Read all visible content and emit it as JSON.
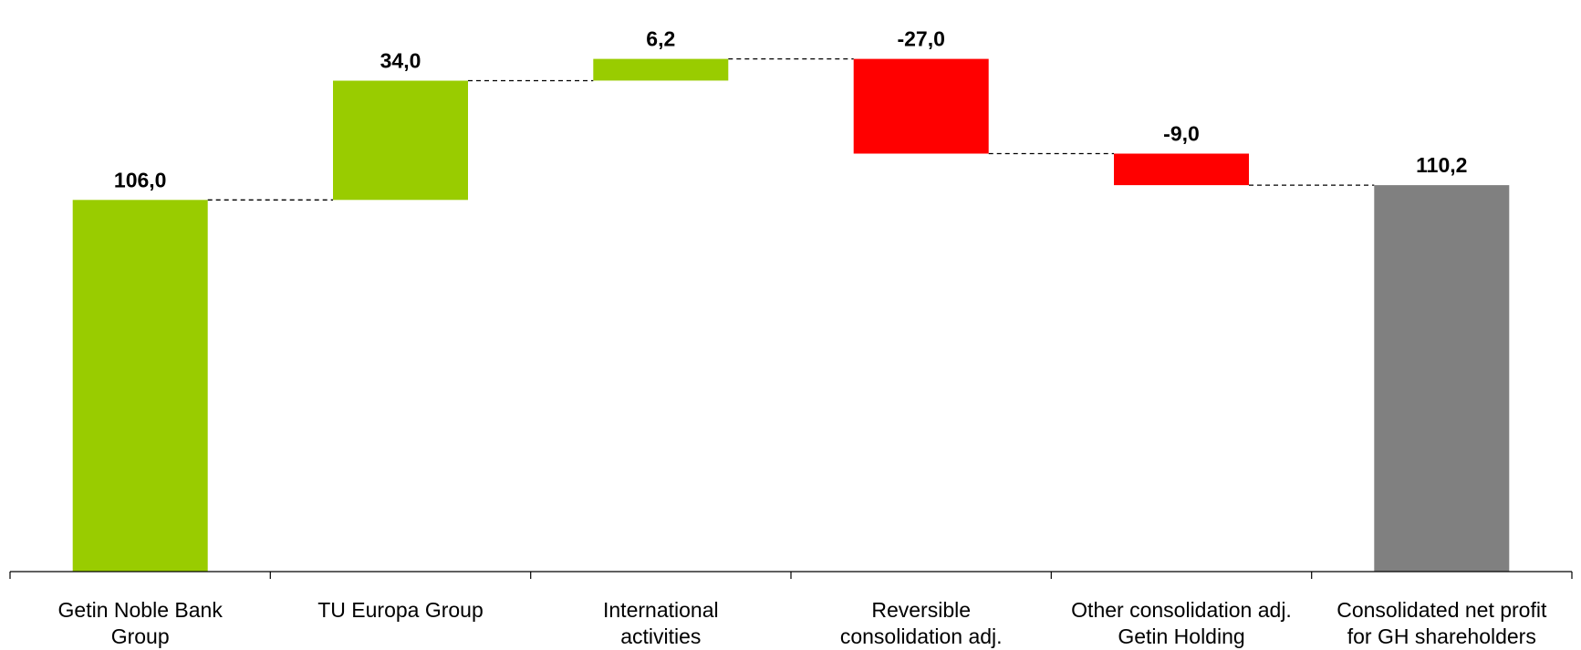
{
  "chart_data": {
    "type": "bar",
    "subtype": "waterfall",
    "categories": [
      [
        "Getin Noble Bank",
        "Group"
      ],
      [
        "TU Europa Group"
      ],
      [
        "International",
        "activities"
      ],
      [
        "Reversible",
        "consolidation adj."
      ],
      [
        "Other consolidation adj.",
        "Getin Holding"
      ],
      [
        "Consolidated net profit",
        "for GH shareholders"
      ]
    ],
    "values": [
      106.0,
      34.0,
      6.2,
      -27.0,
      -9.0,
      110.2
    ],
    "value_labels": [
      "106,0",
      "34,0",
      "6,2",
      "-27,0",
      "-9,0",
      "110,2"
    ],
    "bar_kinds": [
      "total",
      "delta",
      "delta",
      "delta",
      "delta",
      "total"
    ],
    "ylim": [
      0,
      155
    ],
    "grid": false,
    "connectors": "dashed",
    "colors": {
      "positive": "#99CC00",
      "negative": "#FF0000",
      "total_end": "#808080",
      "total_start": "#99CC00"
    }
  }
}
